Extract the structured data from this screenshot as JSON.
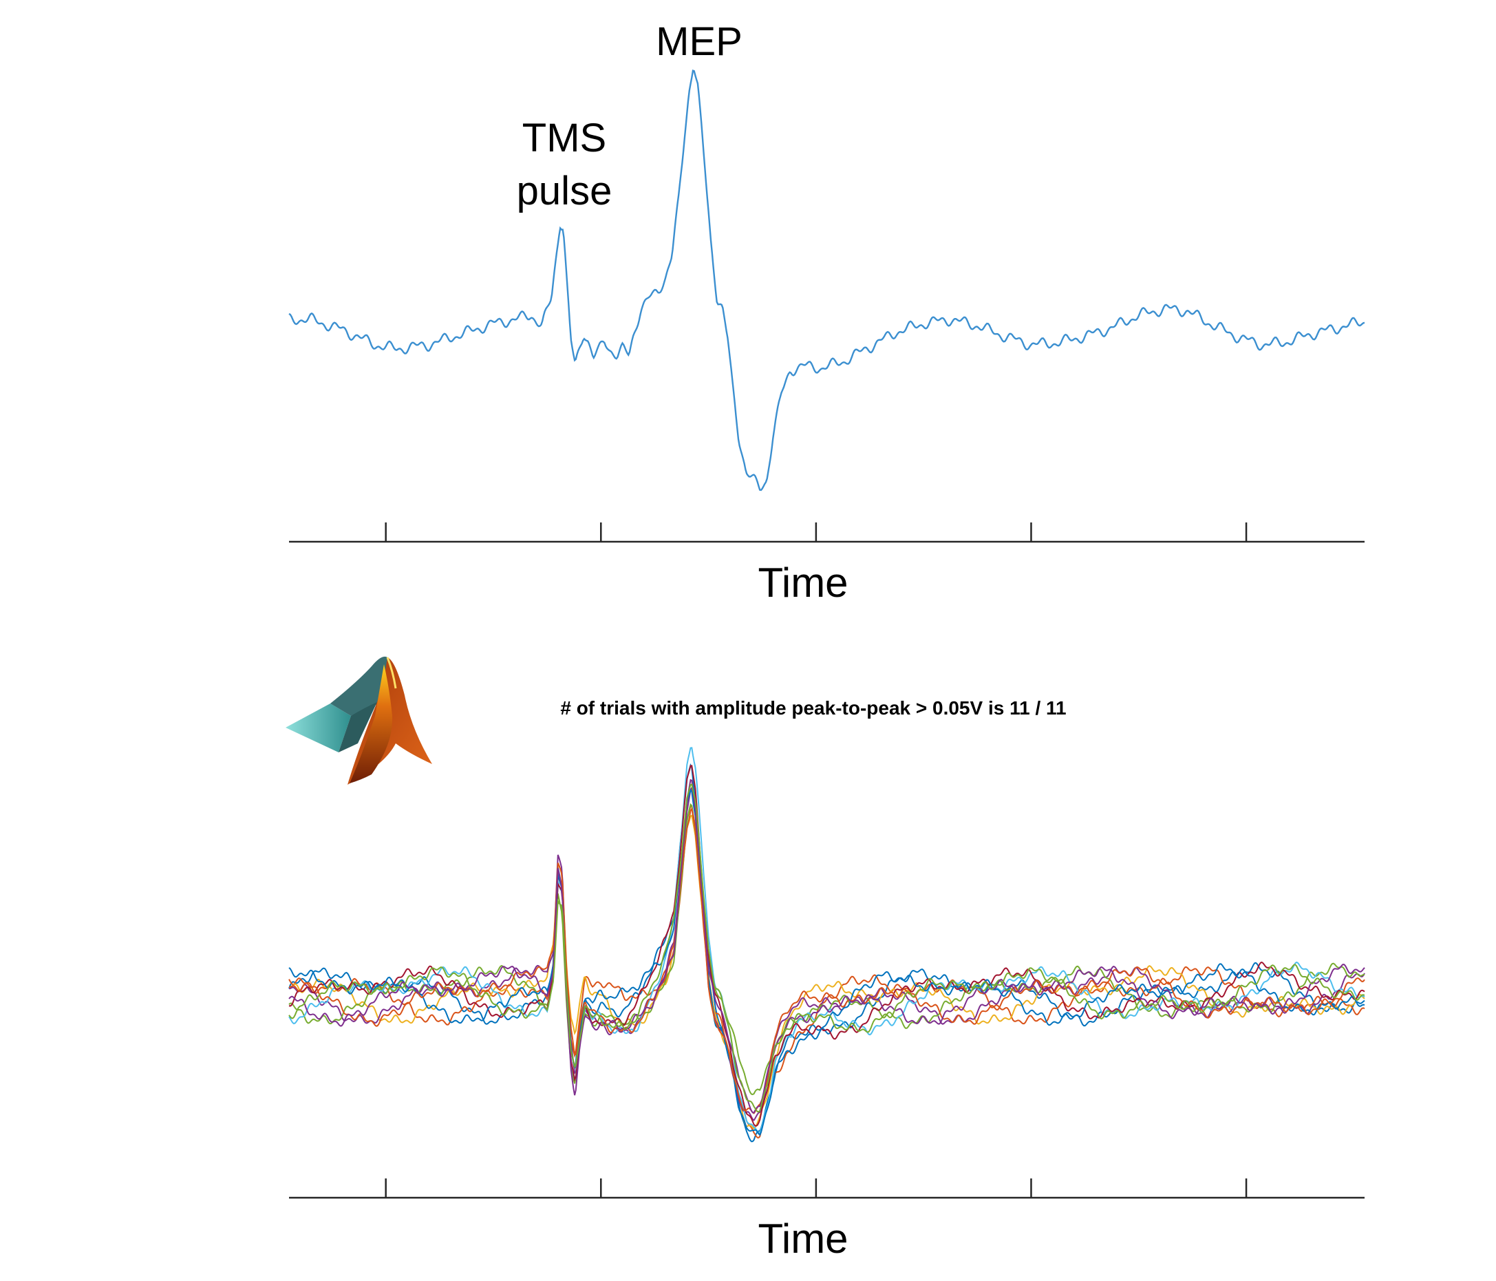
{
  "chart_data": [
    {
      "type": "line",
      "panel": "single-trial",
      "x": {
        "label": "Time",
        "range": [
          0,
          1
        ],
        "tick_values": [
          0.09,
          0.29,
          0.49,
          0.69,
          0.89
        ],
        "tick_labels": []
      },
      "y": {
        "range": [
          -1.05,
          1.15
        ],
        "ticks": false
      },
      "annotations": [
        {
          "text_lines": [
            "TMS",
            "pulse"
          ],
          "x": 0.255,
          "y": 0.82
        },
        {
          "text_lines": [
            "MEP"
          ],
          "x": 0.378,
          "y": 1.16
        }
      ],
      "series": [
        {
          "color": "#3b8fd0",
          "points": [
            [
              0.0,
              0.0
            ],
            [
              0.02,
              0.0
            ],
            [
              0.05,
              -0.05
            ],
            [
              0.08,
              -0.12
            ],
            [
              0.1,
              -0.14
            ],
            [
              0.13,
              -0.12
            ],
            [
              0.16,
              -0.07
            ],
            [
              0.19,
              -0.02
            ],
            [
              0.21,
              0.0
            ],
            [
              0.225,
              0.02
            ],
            [
              0.235,
              -0.03
            ],
            [
              0.24,
              0.04
            ],
            [
              0.244,
              0.1
            ],
            [
              0.248,
              0.28
            ],
            [
              0.252,
              0.46
            ],
            [
              0.255,
              0.44
            ],
            [
              0.258,
              0.2
            ],
            [
              0.262,
              -0.1
            ],
            [
              0.266,
              -0.22
            ],
            [
              0.27,
              -0.14
            ],
            [
              0.274,
              -0.06
            ],
            [
              0.278,
              -0.1
            ],
            [
              0.283,
              -0.18
            ],
            [
              0.288,
              -0.15
            ],
            [
              0.293,
              -0.1
            ],
            [
              0.298,
              -0.14
            ],
            [
              0.305,
              -0.17
            ],
            [
              0.31,
              -0.14
            ],
            [
              0.316,
              -0.17
            ],
            [
              0.32,
              -0.08
            ],
            [
              0.327,
              0.05
            ],
            [
              0.335,
              0.1
            ],
            [
              0.343,
              0.13
            ],
            [
              0.35,
              0.2
            ],
            [
              0.356,
              0.3
            ],
            [
              0.362,
              0.55
            ],
            [
              0.368,
              0.88
            ],
            [
              0.372,
              1.08
            ],
            [
              0.376,
              1.21
            ],
            [
              0.38,
              1.1
            ],
            [
              0.386,
              0.75
            ],
            [
              0.392,
              0.38
            ],
            [
              0.398,
              0.1
            ],
            [
              0.403,
              0.05
            ],
            [
              0.408,
              -0.1
            ],
            [
              0.412,
              -0.3
            ],
            [
              0.418,
              -0.55
            ],
            [
              0.425,
              -0.72
            ],
            [
              0.432,
              -0.76
            ],
            [
              0.438,
              -0.8
            ],
            [
              0.444,
              -0.76
            ],
            [
              0.45,
              -0.55
            ],
            [
              0.458,
              -0.35
            ],
            [
              0.466,
              -0.24
            ],
            [
              0.478,
              -0.22
            ],
            [
              0.495,
              -0.23
            ],
            [
              0.515,
              -0.2
            ],
            [
              0.54,
              -0.13
            ],
            [
              0.565,
              -0.06
            ],
            [
              0.59,
              -0.02
            ],
            [
              0.615,
              0.0
            ],
            [
              0.64,
              -0.03
            ],
            [
              0.665,
              -0.08
            ],
            [
              0.69,
              -0.12
            ],
            [
              0.715,
              -0.11
            ],
            [
              0.74,
              -0.08
            ],
            [
              0.765,
              -0.04
            ],
            [
              0.79,
              0.02
            ],
            [
              0.815,
              0.05
            ],
            [
              0.835,
              0.04
            ],
            [
              0.86,
              -0.03
            ],
            [
              0.885,
              -0.09
            ],
            [
              0.905,
              -0.12
            ],
            [
              0.925,
              -0.11
            ],
            [
              0.95,
              -0.07
            ],
            [
              0.975,
              -0.04
            ],
            [
              1.0,
              -0.01
            ]
          ]
        }
      ]
    },
    {
      "type": "line",
      "panel": "overlaid-trials",
      "title": "# of trials with amplitude peak-to-peak > 0.05V is 11 / 11",
      "x": {
        "label": "Time",
        "range": [
          0,
          1
        ],
        "tick_values": [
          0.09,
          0.29,
          0.49,
          0.69,
          0.89
        ],
        "tick_labels": []
      },
      "y": {
        "range": [
          -1.05,
          1.15
        ],
        "ticks": false
      },
      "template": [
        [
          0.0,
          0.0
        ],
        [
          0.05,
          0.0
        ],
        [
          0.1,
          0.0
        ],
        [
          0.15,
          0.0
        ],
        [
          0.2,
          0.0
        ],
        [
          0.23,
          0.0
        ],
        [
          0.24,
          -0.01
        ],
        [
          0.246,
          0.15
        ],
        [
          0.25,
          0.62
        ],
        [
          0.254,
          0.55
        ],
        [
          0.258,
          0.05
        ],
        [
          0.262,
          -0.28
        ],
        [
          0.266,
          -0.4
        ],
        [
          0.27,
          -0.2
        ],
        [
          0.275,
          -0.02
        ],
        [
          0.282,
          -0.08
        ],
        [
          0.29,
          -0.06
        ],
        [
          0.3,
          -0.1
        ],
        [
          0.312,
          -0.12
        ],
        [
          0.325,
          -0.08
        ],
        [
          0.338,
          0.02
        ],
        [
          0.35,
          0.15
        ],
        [
          0.358,
          0.3
        ],
        [
          0.364,
          0.65
        ],
        [
          0.37,
          1.0
        ],
        [
          0.374,
          1.1
        ],
        [
          0.378,
          0.95
        ],
        [
          0.384,
          0.55
        ],
        [
          0.39,
          0.15
        ],
        [
          0.396,
          -0.05
        ],
        [
          0.402,
          -0.12
        ],
        [
          0.41,
          -0.28
        ],
        [
          0.418,
          -0.5
        ],
        [
          0.425,
          -0.63
        ],
        [
          0.432,
          -0.68
        ],
        [
          0.438,
          -0.66
        ],
        [
          0.445,
          -0.52
        ],
        [
          0.452,
          -0.35
        ],
        [
          0.462,
          -0.22
        ],
        [
          0.475,
          -0.15
        ],
        [
          0.5,
          -0.08
        ],
        [
          0.55,
          -0.03
        ],
        [
          0.6,
          0.0
        ],
        [
          0.7,
          0.0
        ],
        [
          0.8,
          0.0
        ],
        [
          0.9,
          0.0
        ],
        [
          1.0,
          0.0
        ]
      ],
      "series": [
        {
          "color": "#0072bd",
          "scale": 1.0,
          "phase": 0.1
        },
        {
          "color": "#d95319",
          "scale": 0.96,
          "phase": 1.4
        },
        {
          "color": "#edb120",
          "scale": 0.9,
          "phase": 2.3
        },
        {
          "color": "#7e2f8e",
          "scale": 1.04,
          "phase": 3.1
        },
        {
          "color": "#77ac30",
          "scale": 0.92,
          "phase": 4.0
        },
        {
          "color": "#4dbeee",
          "scale": 1.08,
          "phase": 4.9
        },
        {
          "color": "#a2142f",
          "scale": 0.98,
          "phase": 5.6
        },
        {
          "color": "#0072bd",
          "scale": 1.02,
          "phase": 0.8
        },
        {
          "color": "#d95319",
          "scale": 0.94,
          "phase": 2.9
        },
        {
          "color": "#7e2f8e",
          "scale": 1.06,
          "phase": 3.7
        },
        {
          "color": "#77ac30",
          "scale": 0.88,
          "phase": 5.2
        }
      ]
    }
  ]
}
